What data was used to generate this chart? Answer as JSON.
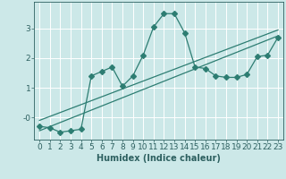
{
  "title": "",
  "xlabel": "Humidex (Indice chaleur)",
  "bg_color": "#cce8e8",
  "line_color": "#2d7d72",
  "grid_color": "#ffffff",
  "x_data": [
    0,
    1,
    2,
    3,
    4,
    5,
    6,
    7,
    8,
    9,
    10,
    11,
    12,
    13,
    14,
    15,
    16,
    17,
    18,
    19,
    20,
    21,
    22,
    23
  ],
  "y_data": [
    -0.3,
    -0.35,
    -0.5,
    -0.45,
    -0.4,
    1.4,
    1.55,
    1.7,
    1.05,
    1.4,
    2.1,
    3.05,
    3.5,
    3.5,
    2.85,
    1.7,
    1.65,
    1.4,
    1.35,
    1.35,
    1.45,
    2.05,
    2.1,
    2.7
  ],
  "trend_x": [
    0,
    23
  ],
  "trend_y": [
    -0.45,
    2.75
  ],
  "trend2_x": [
    0,
    23
  ],
  "trend2_y": [
    -0.1,
    2.95
  ],
  "ytick_vals": [
    0,
    1,
    2,
    3
  ],
  "ytick_labels": [
    "-0",
    "1",
    "2",
    "3"
  ],
  "ylim": [
    -0.75,
    3.9
  ],
  "xlim": [
    -0.5,
    23.5
  ],
  "label_fontsize": 7,
  "tick_fontsize": 6.5,
  "marker_size": 3
}
